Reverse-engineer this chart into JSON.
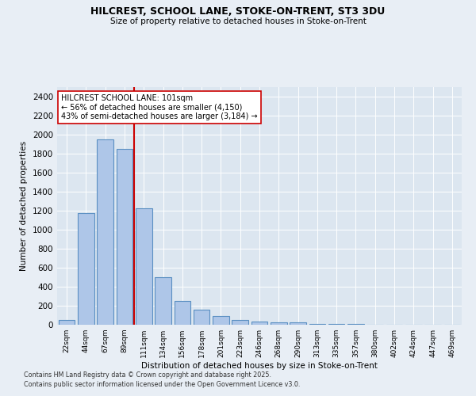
{
  "title1": "HILCREST, SCHOOL LANE, STOKE-ON-TRENT, ST3 3DU",
  "title2": "Size of property relative to detached houses in Stoke-on-Trent",
  "xlabel": "Distribution of detached houses by size in Stoke-on-Trent",
  "ylabel": "Number of detached properties",
  "categories": [
    "22sqm",
    "44sqm",
    "67sqm",
    "89sqm",
    "111sqm",
    "134sqm",
    "156sqm",
    "178sqm",
    "201sqm",
    "223sqm",
    "246sqm",
    "268sqm",
    "290sqm",
    "313sqm",
    "335sqm",
    "357sqm",
    "380sqm",
    "402sqm",
    "424sqm",
    "447sqm",
    "469sqm"
  ],
  "values": [
    50,
    1175,
    1950,
    1850,
    1225,
    500,
    250,
    160,
    90,
    50,
    30,
    28,
    25,
    10,
    5,
    5,
    3,
    2,
    1,
    1,
    1
  ],
  "bar_color": "#aec6e8",
  "bar_edge_color": "#5a8fc2",
  "vline_x": 3.5,
  "vline_color": "#cc0000",
  "annotation_text": "HILCREST SCHOOL LANE: 101sqm\n← 56% of detached houses are smaller (4,150)\n43% of semi-detached houses are larger (3,184) →",
  "annotation_box_color": "#ffffff",
  "annotation_box_edge": "#cc0000",
  "ylim": [
    0,
    2500
  ],
  "yticks": [
    0,
    200,
    400,
    600,
    800,
    1000,
    1200,
    1400,
    1600,
    1800,
    2000,
    2200,
    2400
  ],
  "bg_color": "#e8eef5",
  "plot_bg": "#dce6f0",
  "footer1": "Contains HM Land Registry data © Crown copyright and database right 2025.",
  "footer2": "Contains public sector information licensed under the Open Government Licence v3.0."
}
